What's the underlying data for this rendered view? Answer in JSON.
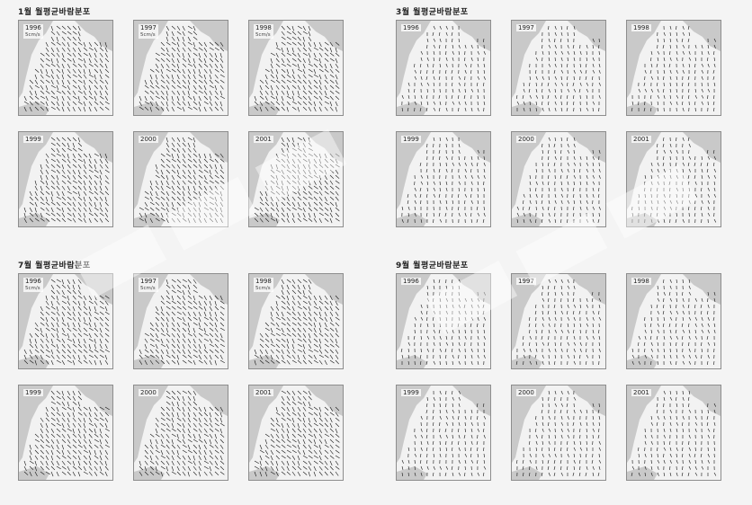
{
  "groups": [
    {
      "title": "1월 월평균바람분포",
      "years": [
        "1996",
        "1997",
        "1998",
        "1999",
        "2000",
        "2001"
      ],
      "scale": "5cm/s"
    },
    {
      "title": "3월 월평균바람분포",
      "years": [
        "1996",
        "1997",
        "1998",
        "1999",
        "2000",
        "2001"
      ],
      "scale": ""
    },
    {
      "title": "7월 월평균바람분포",
      "years": [
        "1996",
        "1997",
        "1998",
        "1999",
        "2000",
        "2001"
      ],
      "scale": "5cm/s"
    },
    {
      "title": "9월 월평균바람분포",
      "years": [
        "1996",
        "1997",
        "1998",
        "1999",
        "2000",
        "2001"
      ],
      "scale": ""
    }
  ],
  "colors": {
    "land": "#c9c9c9",
    "sea": "#f2f2f2",
    "arrow": "#111111"
  }
}
